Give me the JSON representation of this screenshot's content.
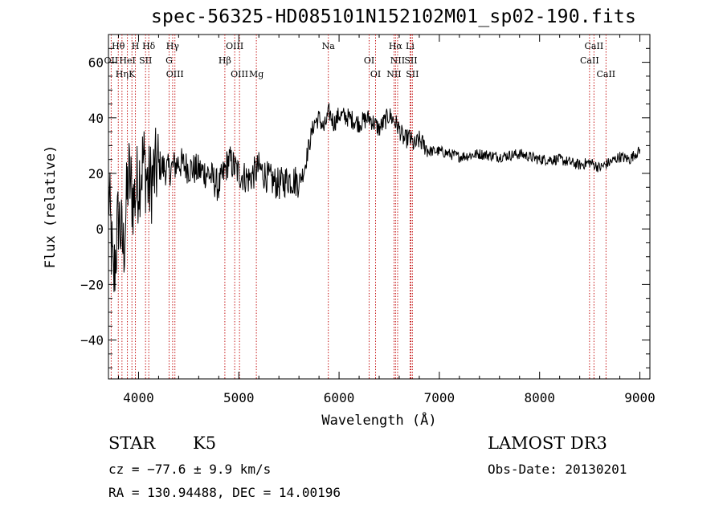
{
  "chart_data": {
    "type": "line",
    "title": "spec-56325-HD085101N152102M01_sp02-190.fits",
    "xlabel": "Wavelength (Å)",
    "ylabel": "Flux (relative)",
    "xlim": [
      3700,
      9100
    ],
    "ylim": [
      -54,
      70
    ],
    "xticks": [
      4000,
      5000,
      6000,
      7000,
      8000,
      9000
    ],
    "xtick_labels": [
      "4000",
      "5000",
      "6000",
      "7000",
      "8000",
      "9000"
    ],
    "yticks": [
      -40,
      -20,
      0,
      20,
      40,
      60
    ],
    "ytick_labels": [
      "−40",
      "−20",
      "0",
      "20",
      "40",
      "60"
    ],
    "series": [
      {
        "name": "spectrum",
        "x": [
          3700,
          3750,
          3800,
          3850,
          3900,
          3950,
          4000,
          4050,
          4100,
          4200,
          4300,
          4400,
          4500,
          4600,
          4700,
          4800,
          4900,
          5000,
          5100,
          5200,
          5300,
          5400,
          5500,
          5600,
          5650,
          5700,
          5750,
          5800,
          5850,
          5900,
          5950,
          6000,
          6100,
          6200,
          6300,
          6400,
          6500,
          6550,
          6600,
          6650,
          6700,
          6750,
          6800,
          6900,
          7000,
          7200,
          7400,
          7600,
          7800,
          8000,
          8200,
          8400,
          8500,
          8600,
          8700,
          8800,
          8900,
          8950,
          9000
        ],
        "values": [
          15,
          -20,
          5,
          -8,
          20,
          10,
          18,
          25,
          15,
          23,
          21,
          24,
          22,
          21,
          20,
          15,
          25,
          20,
          18,
          22,
          18,
          16,
          18,
          17,
          21,
          30,
          38,
          40,
          36,
          42,
          38,
          41,
          40,
          38,
          40,
          36,
          41,
          39,
          36,
          32,
          33,
          30,
          32,
          28,
          28,
          26,
          27,
          26,
          27,
          25,
          25,
          23,
          24,
          22,
          24,
          26,
          25,
          27,
          28
        ]
      }
    ],
    "lines": [
      {
        "name": "Hθ",
        "x": 3798
      },
      {
        "name": "OII",
        "x": 3727
      },
      {
        "name": "K",
        "x": 3934
      },
      {
        "name": "H",
        "x": 3969
      },
      {
        "name": "HeI",
        "x": 3889
      },
      {
        "name": "Hη",
        "x": 3835
      },
      {
        "name": "Hδ",
        "x": 4102
      },
      {
        "name": "SII",
        "x": 4070
      },
      {
        "name": "OIII",
        "x": 4363
      },
      {
        "name": "Hγ",
        "x": 4340
      },
      {
        "name": "G",
        "x": 4305
      },
      {
        "name": "OIII",
        "x": 5007
      },
      {
        "name": "OIII",
        "x": 4959
      },
      {
        "name": "Hβ",
        "x": 4861
      },
      {
        "name": "Mg",
        "x": 5175
      },
      {
        "name": "Na",
        "x": 5893
      },
      {
        "name": "OI",
        "x": 6300
      },
      {
        "name": "OI",
        "x": 6364
      },
      {
        "name": "Hα",
        "x": 6563
      },
      {
        "name": "SII",
        "x": 6716
      },
      {
        "name": "NII",
        "x": 6548
      },
      {
        "name": "Li",
        "x": 6708
      },
      {
        "name": "NII",
        "x": 6584
      },
      {
        "name": "SII",
        "x": 6731
      },
      {
        "name": "CaII",
        "x": 8542
      },
      {
        "name": "CaII",
        "x": 8498
      },
      {
        "name": "CaII",
        "x": 8662
      }
    ]
  },
  "info": {
    "object_type": "STAR",
    "subclass": "K5",
    "survey": "LAMOST DR3",
    "cz": "cz = −77.6 ± 9.9 km/s",
    "obs_date": "Obs-Date: 20130201",
    "coords": "RA = 130.94488, DEC =  14.00196"
  }
}
